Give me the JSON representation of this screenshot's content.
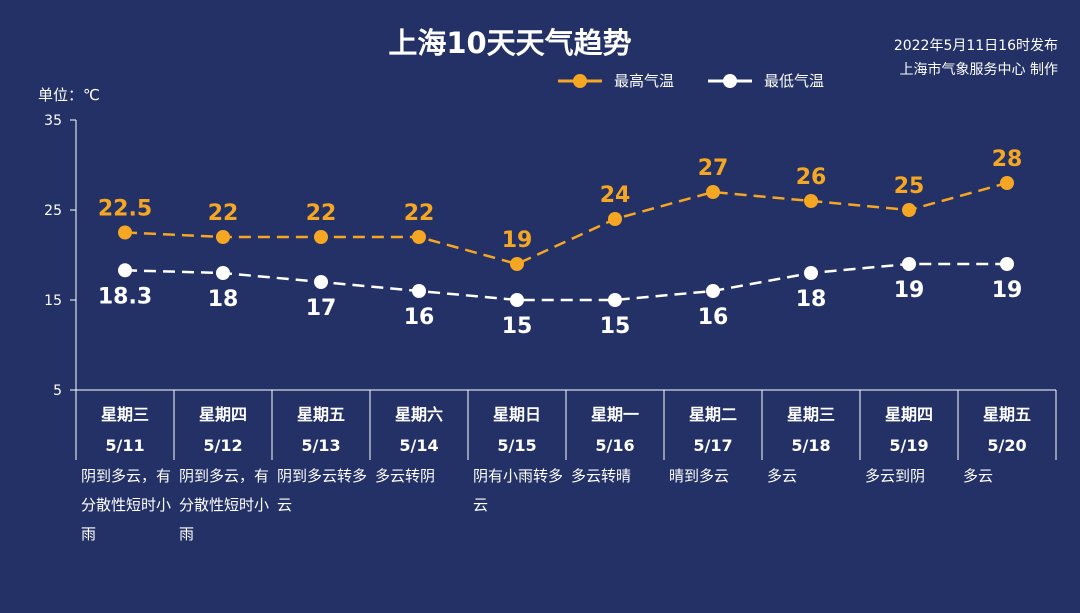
{
  "title": "上海10天天气趋势",
  "publish_time": "2022年5月11日16时发布",
  "publisher": "上海市气象服务中心 制作",
  "unit_label": "单位：℃",
  "legend": {
    "high": "最高气温",
    "low": "最低气温"
  },
  "colors": {
    "background": "#233166",
    "high": "#f5a623",
    "low": "#ffffff",
    "axis": "#ffffff"
  },
  "chart_data": {
    "type": "line",
    "title": "上海10天天气趋势",
    "ylabel": "单位：℃",
    "ylim": [
      5,
      35
    ],
    "yticks": [
      5,
      15,
      25,
      35
    ],
    "grid": false,
    "legend_position": "top-right",
    "categories": [
      "5/11",
      "5/12",
      "5/13",
      "5/14",
      "5/15",
      "5/16",
      "5/17",
      "5/18",
      "5/19",
      "5/20"
    ],
    "weekdays": [
      "星期三",
      "星期四",
      "星期五",
      "星期六",
      "星期日",
      "星期一",
      "星期二",
      "星期三",
      "星期四",
      "星期五"
    ],
    "series": [
      {
        "name": "最高气温",
        "values": [
          22.5,
          22,
          22,
          22,
          19,
          24,
          27,
          26,
          25,
          28
        ]
      },
      {
        "name": "最低气温",
        "values": [
          18.3,
          18,
          17,
          16,
          15,
          15,
          16,
          18,
          19,
          19
        ]
      }
    ],
    "weather": [
      "阴到多云，有分散性短时小雨",
      "阴到多云，有分散性短时小雨",
      "阴到多云转多云",
      "多云转阴",
      "阴有小雨转多云",
      "多云转晴",
      "晴到多云",
      "多云",
      "多云到阴",
      "多云"
    ]
  }
}
